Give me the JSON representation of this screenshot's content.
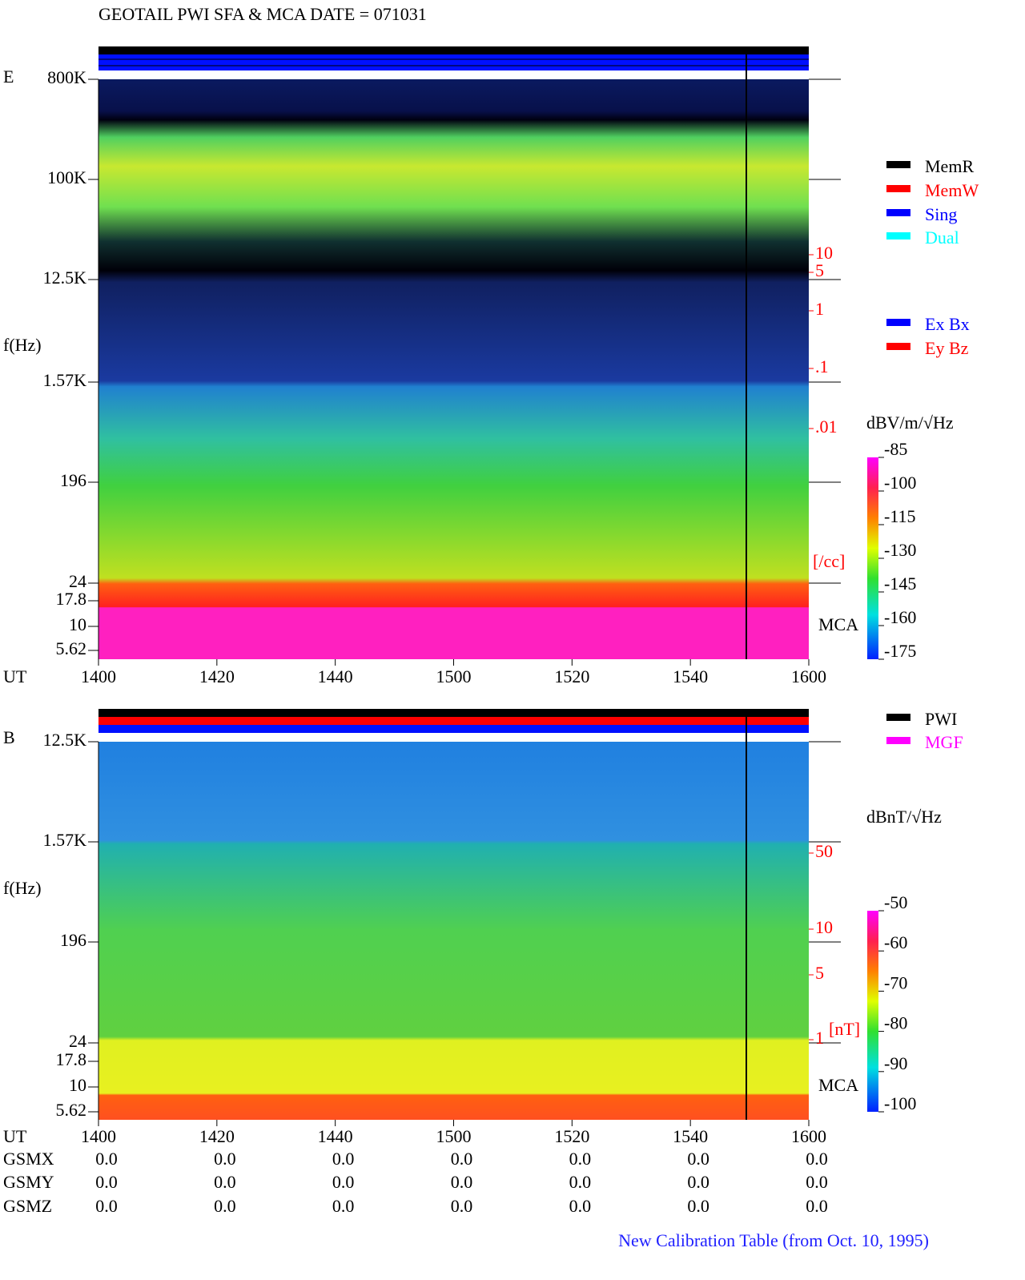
{
  "header": {
    "title": "GEOTAIL  PWI SFA & MCA   DATE = 071031"
  },
  "chart_data": [
    {
      "type": "spectrogram",
      "panel_label": "E",
      "ylabel": "f(Hz)",
      "xlabel": "UT",
      "categories": [
        "1400",
        "1420",
        "1440",
        "1500",
        "1520",
        "1540",
        "1600"
      ],
      "yticks": [
        {
          "value": 800000,
          "label": "800K"
        },
        {
          "value": 100000,
          "label": "100K"
        },
        {
          "value": 12500,
          "label": "12.5K"
        },
        {
          "value": 1570,
          "label": "1.57K"
        },
        196,
        24,
        17.8,
        10,
        5.62
      ],
      "mca_label": "MCA",
      "density_ticks": [
        10,
        5,
        1,
        {
          "value": 0.1,
          "label": ".1"
        },
        {
          "value": 0.01,
          "label": ".01"
        }
      ],
      "density_unit": "[/cc]",
      "legend": [
        {
          "name": "MemR",
          "color": "#000000"
        },
        {
          "name": "MemW",
          "color": "#ff0000"
        },
        {
          "name": "Sing",
          "color": "#0000ff"
        },
        {
          "name": "Dual",
          "color": "#00ffff"
        }
      ],
      "component_legend": [
        {
          "name": "Ex Bx",
          "color": "#0000ff"
        },
        {
          "name": "Ey Bz",
          "color": "#ff0000"
        }
      ],
      "colorbar": {
        "label": "dBV/m/√Hz",
        "lim": [
          -85,
          -175
        ],
        "ticks": [
          -85,
          -100,
          -115,
          -130,
          -145,
          -160,
          -175
        ]
      }
    },
    {
      "type": "spectrogram",
      "panel_label": "B",
      "ylabel": "f(Hz)",
      "xlabel": "UT",
      "categories": [
        "1400",
        "1420",
        "1440",
        "1500",
        "1520",
        "1540",
        "1600"
      ],
      "yticks": [
        {
          "value": 12500,
          "label": "12.5K"
        },
        {
          "value": 1570,
          "label": "1.57K"
        },
        196,
        24,
        17.8,
        10,
        5.62
      ],
      "mca_label": "MCA",
      "density_ticks": [
        50,
        10,
        5,
        1
      ],
      "density_unit": "[nT]",
      "legend": [
        {
          "name": "PWI",
          "color": "#000000"
        },
        {
          "name": "MGF",
          "color": "#ff00ff"
        }
      ],
      "colorbar": {
        "label": "dBnT/√Hz",
        "lim": [
          -50,
          -100
        ],
        "ticks": [
          -50,
          -60,
          -70,
          -80,
          -90,
          -100
        ]
      }
    }
  ],
  "gsm": {
    "labels": [
      "GSMX",
      "GSMY",
      "GSMZ"
    ],
    "rows": [
      [
        "0.0",
        "0.0",
        "0.0",
        "0.0",
        "0.0",
        "0.0",
        "0.0"
      ],
      [
        "0.0",
        "0.0",
        "0.0",
        "0.0",
        "0.0",
        "0.0",
        "0.0"
      ],
      [
        "0.0",
        "0.0",
        "0.0",
        "0.0",
        "0.0",
        "0.0",
        "0.0"
      ]
    ]
  },
  "footer": {
    "note": "New Calibration Table (from Oct. 10, 1995)"
  }
}
